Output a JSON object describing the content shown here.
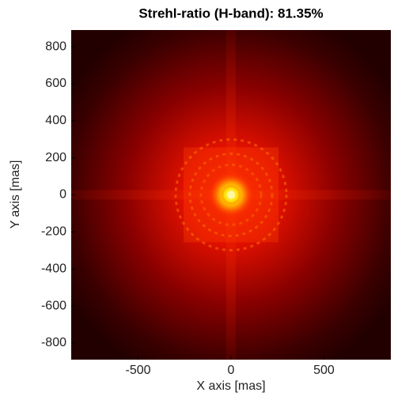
{
  "chart_data": {
    "type": "image",
    "title": "Strehl-ratio (H-band): 81.35%",
    "x_label": "X axis [mas]",
    "y_label": "Y axis [mas]",
    "xlim": [
      -860,
      860
    ],
    "ylim": [
      -890,
      890
    ],
    "xticks": [
      -500,
      0,
      500
    ],
    "yticks": [
      -800,
      -600,
      -400,
      -200,
      0,
      200,
      400,
      600,
      800
    ],
    "colormap": "hot"
  }
}
